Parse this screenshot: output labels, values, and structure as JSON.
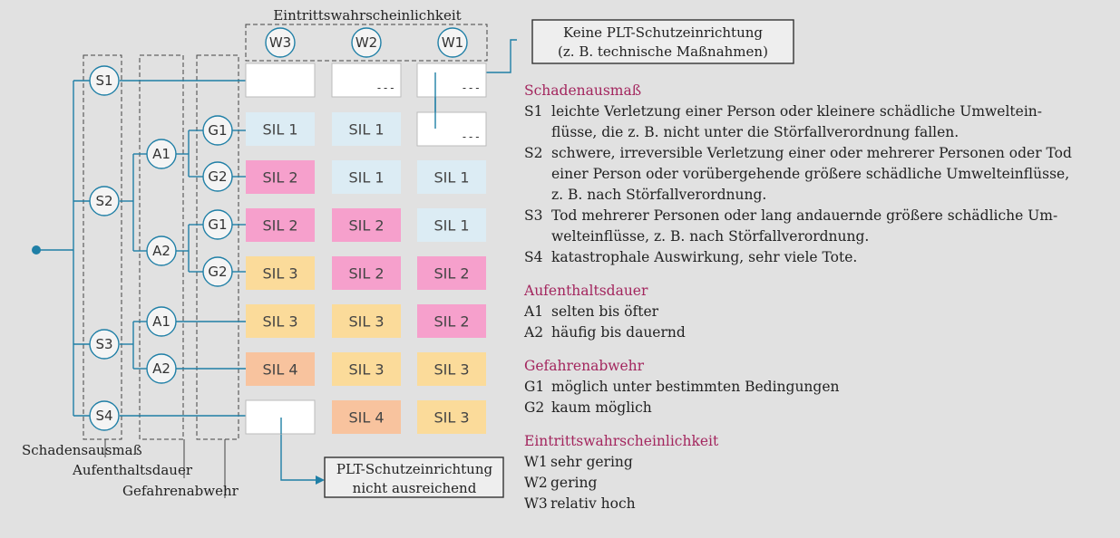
{
  "diagram": {
    "header_title": "Eintrittswahrscheinlichkeit",
    "box_top": [
      "Keine PLT-Schutzeinrichtung",
      "(z. B. technische Maßnahmen)"
    ],
    "box_bottom": [
      "PLT-Schutzeinrichtung",
      "nicht ausreichend"
    ],
    "captions": [
      "Schadensausmaß",
      "Aufenthaltsdauer",
      "Gefahrenabwehr"
    ],
    "w_nodes": [
      "W3",
      "W2",
      "W1"
    ],
    "s_nodes": [
      "S1",
      "S2",
      "S3",
      "S4"
    ],
    "a_nodes": [
      "A1",
      "A2",
      "A1",
      "A2"
    ],
    "g_nodes": [
      "G1",
      "G2",
      "G1",
      "G2"
    ],
    "dash": "---",
    "rows": [
      [
        "",
        "---",
        "---"
      ],
      [
        "SIL 1",
        "SIL 1",
        "---"
      ],
      [
        "SIL 2",
        "SIL 1",
        "SIL 1"
      ],
      [
        "SIL 2",
        "SIL 2",
        "SIL 1"
      ],
      [
        "SIL 3",
        "SIL 2",
        "SIL 2"
      ],
      [
        "SIL 3",
        "SIL 3",
        "SIL 2"
      ],
      [
        "SIL 4",
        "SIL 3",
        "SIL 3"
      ],
      [
        "",
        "SIL 4",
        "SIL 3"
      ]
    ],
    "colors": {
      "line": "#1f7fa6",
      "sil1": "#dcecf4",
      "sil2": "#f6a0cc",
      "sil3": "#fbdb9a",
      "sil4": "#f8c39e",
      "empty": "#ffffff",
      "accent_title": "#a3265e"
    }
  },
  "legend": {
    "schadenausmass": {
      "title": "Schadenausmaß",
      "items": [
        {
          "key": "S1",
          "lines": [
            "leichte Verletzung einer Person oder kleinere schädliche Umweltein-",
            "flüsse, die z. B. nicht unter die Störfallverordnung fallen."
          ]
        },
        {
          "key": "S2",
          "lines": [
            "schwere, irreversible Verletzung einer oder mehrerer Personen oder Tod",
            "einer Person oder vorübergehende größere schädliche Umwelteinflüsse,",
            "z. B. nach Störfallverordnung."
          ]
        },
        {
          "key": "S3",
          "lines": [
            "Tod mehrerer Personen oder lang andauernde größere schädliche Um-",
            "welteinflüsse, z. B. nach Störfallverordnung."
          ]
        },
        {
          "key": "S4",
          "lines": [
            "katastrophale Auswirkung, sehr viele Tote."
          ]
        }
      ]
    },
    "aufenthaltsdauer": {
      "title": "Aufenthaltsdauer",
      "items": [
        {
          "key": "A1",
          "text": "selten bis öfter"
        },
        {
          "key": "A2",
          "text": "häufig bis dauernd"
        }
      ]
    },
    "gefahrenabwehr": {
      "title": "Gefahrenabwehr",
      "items": [
        {
          "key": "G1",
          "text": "möglich unter bestimmten Bedingungen"
        },
        {
          "key": "G2",
          "text": "kaum möglich"
        }
      ]
    },
    "eintritt": {
      "title": "Eintrittswahrscheinlichkeit",
      "items": [
        {
          "key": "W1",
          "text": "sehr gering"
        },
        {
          "key": "W2",
          "text": "gering"
        },
        {
          "key": "W3",
          "text": "relativ hoch"
        }
      ]
    }
  }
}
